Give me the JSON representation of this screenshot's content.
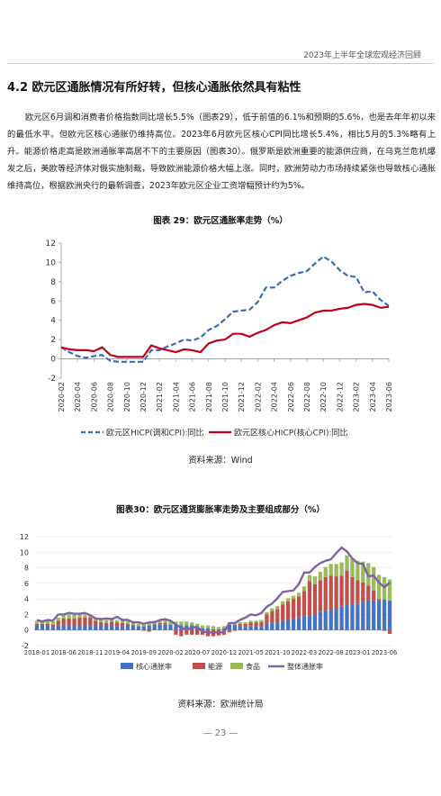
{
  "header": {
    "title": "2023年上半年全球宏观经济回顾"
  },
  "section": {
    "title": "4.2 欧元区通胀情况有所好转，但核心通胀依然具有粘性"
  },
  "paragraph": "欧元区6月调和消费者价格指数同比增长5.5%（图表29），低于前值的6.1%和预期的5.6%，也是去年年初以来的最低水平。但欧元区核心通胀仍维持高位。2023年6月欧元区核心CPI同比增长5.4%，相比5月的5.3%略有上升。能源价格走高是欧洲通胀率高居不下的主要原因（图表30）。俄罗斯是欧洲重要的能源供应商，在乌克兰危机爆发之后，美欧等经济体对俄实施制裁，导致欧洲能源价格大幅上涨。同时，欧洲劳动力市场持续紧张也导致核心通胀维持高位，根据欧洲央行的最新调查，2023年欧元区企业工资增幅预计约为5%。",
  "figure1": {
    "title": "图表 29：欧元区通胀率走势（%）",
    "source": "资料来源：Wind"
  },
  "figure2": {
    "title": "图表30：欧元区通货膨胀率走势及主要组成部分（%）",
    "source": "资料来源：欧洲统计局"
  },
  "footer": {
    "page": "— 23 —"
  },
  "chart_data": [
    {
      "type": "line",
      "title": "图表 29：欧元区通胀率走势（%）",
      "ylim": [
        -2,
        12
      ],
      "yticks": [
        -2,
        0,
        2,
        4,
        6,
        8,
        10,
        12
      ],
      "x_tick_labels": [
        "2020-02",
        "2020-04",
        "2020-06",
        "2020-08",
        "2020-10",
        "2020-12",
        "2021-02",
        "2021-04",
        "2021-06",
        "2021-08",
        "2021-10",
        "2021-12",
        "2022-02",
        "2022-04",
        "2022-06",
        "2022-08",
        "2022-10",
        "2022-12",
        "2023-02",
        "2023-04",
        "2023-06"
      ],
      "x": [
        "2020-02",
        "2020-03",
        "2020-04",
        "2020-05",
        "2020-06",
        "2020-07",
        "2020-08",
        "2020-09",
        "2020-10",
        "2020-11",
        "2020-12",
        "2021-01",
        "2021-02",
        "2021-03",
        "2021-04",
        "2021-05",
        "2021-06",
        "2021-07",
        "2021-08",
        "2021-09",
        "2021-10",
        "2021-11",
        "2021-12",
        "2022-01",
        "2022-02",
        "2022-03",
        "2022-04",
        "2022-05",
        "2022-06",
        "2022-07",
        "2022-08",
        "2022-09",
        "2022-10",
        "2022-11",
        "2022-12",
        "2023-01",
        "2023-02",
        "2023-03",
        "2023-04",
        "2023-05",
        "2023-06"
      ],
      "series": [
        {
          "name": "欧元区HICP(调和CPI):同比",
          "color": "#3a6cb4",
          "style": "dashed",
          "values": [
            1.2,
            0.7,
            0.3,
            0.1,
            0.3,
            0.4,
            -0.2,
            -0.3,
            -0.3,
            -0.3,
            -0.3,
            0.9,
            0.9,
            1.3,
            1.6,
            2.0,
            1.9,
            2.2,
            3.0,
            3.4,
            4.1,
            4.9,
            5.0,
            5.1,
            5.9,
            7.4,
            7.4,
            8.1,
            8.6,
            8.9,
            9.1,
            9.9,
            10.6,
            10.1,
            9.2,
            8.6,
            8.5,
            6.9,
            7.0,
            6.1,
            5.5
          ]
        },
        {
          "name": "欧元区核心HICP(核心CPI):同比",
          "color": "#c0001a",
          "style": "solid",
          "values": [
            1.2,
            1.0,
            0.9,
            0.9,
            0.8,
            1.2,
            0.4,
            0.2,
            0.2,
            0.2,
            0.2,
            1.4,
            1.1,
            0.9,
            0.7,
            1.0,
            0.9,
            0.7,
            1.6,
            1.9,
            2.0,
            2.6,
            2.6,
            2.3,
            2.7,
            3.0,
            3.5,
            3.8,
            3.7,
            4.0,
            4.3,
            4.8,
            5.0,
            5.0,
            5.2,
            5.3,
            5.6,
            5.7,
            5.6,
            5.3,
            5.4
          ]
        }
      ]
    },
    {
      "type": "bar",
      "title": "图表30：欧元区通货膨胀率走势及主要组成部分（%）",
      "ylim": [
        -2,
        12
      ],
      "yticks": [
        -2,
        0,
        2,
        4,
        6,
        8,
        10,
        12
      ],
      "x_tick_labels": [
        "2018-01",
        "2018-06",
        "2018-11",
        "2019-04",
        "2019-09",
        "2020-02",
        "2020-07",
        "2020-12",
        "2021-05",
        "2021-10",
        "2022-03",
        "2022-08",
        "2023-01",
        "2023-06"
      ],
      "x_start": "2018-01",
      "stacked": true,
      "series": [
        {
          "name": "核心通胀率",
          "color": "#4472c4",
          "values": [
            0.6,
            0.6,
            0.6,
            0.4,
            0.6,
            0.6,
            0.6,
            0.6,
            0.6,
            0.6,
            0.6,
            0.6,
            0.6,
            0.6,
            0.6,
            0.5,
            0.5,
            0.6,
            0.6,
            0.5,
            0.5,
            0.6,
            0.7,
            0.7,
            0.7,
            0.7,
            0.6,
            0.6,
            0.6,
            0.6,
            0.4,
            0.2,
            0.2,
            0.1,
            0.1,
            0.2,
            0.7,
            0.7,
            0.5,
            0.4,
            0.5,
            0.5,
            0.4,
            0.8,
            0.9,
            1.0,
            1.2,
            1.3,
            1.4,
            1.6,
            1.8,
            1.9,
            2.0,
            2.3,
            2.5,
            2.6,
            2.8,
            3.0,
            3.2,
            3.2,
            3.4,
            3.6,
            3.8,
            3.8,
            3.8,
            3.9,
            3.8
          ]
        },
        {
          "name": "能源",
          "color": "#c0504d",
          "values": [
            0.2,
            0.2,
            0.2,
            0.3,
            0.6,
            0.9,
            0.9,
            0.9,
            1.0,
            1.0,
            1.0,
            0.6,
            0.4,
            0.3,
            0.5,
            0.5,
            0.4,
            0.2,
            0.1,
            0.0,
            -0.1,
            -0.2,
            0.1,
            0.2,
            0.2,
            0.0,
            -0.6,
            -0.8,
            -0.6,
            -0.6,
            -0.6,
            -0.6,
            -0.8,
            -0.8,
            -0.7,
            -0.6,
            -0.3,
            -0.1,
            0.3,
            0.4,
            0.5,
            0.5,
            0.6,
            1.2,
            1.5,
            1.7,
            2.1,
            2.4,
            2.6,
            2.7,
            3.2,
            4.4,
            3.9,
            4.1,
            4.3,
            4.4,
            4.1,
            4.0,
            4.4,
            3.6,
            3.0,
            2.5,
            1.9,
            1.3,
            0.2,
            -0.1,
            -0.5
          ]
        },
        {
          "name": "食品",
          "color": "#9bbb59",
          "values": [
            0.4,
            0.4,
            0.4,
            0.4,
            0.4,
            0.4,
            0.5,
            0.5,
            0.5,
            0.4,
            0.4,
            0.4,
            0.4,
            0.4,
            0.4,
            0.3,
            0.3,
            0.3,
            0.3,
            0.3,
            0.3,
            0.4,
            0.4,
            0.4,
            0.4,
            0.5,
            0.5,
            0.5,
            0.5,
            0.4,
            0.4,
            0.4,
            0.4,
            0.4,
            0.3,
            0.3,
            0.3,
            0.2,
            0.2,
            0.2,
            0.2,
            0.2,
            0.3,
            0.3,
            0.4,
            0.4,
            0.4,
            0.4,
            0.4,
            0.5,
            0.6,
            0.8,
            1.0,
            1.1,
            1.3,
            1.5,
            1.6,
            1.7,
            2.0,
            2.4,
            2.5,
            2.7,
            2.9,
            3.0,
            3.1,
            2.9,
            2.7
          ]
        }
      ],
      "line": {
        "name": "整体通胀率",
        "color": "#8064a2",
        "values": [
          1.3,
          1.1,
          1.3,
          1.2,
          2.0,
          2.0,
          2.2,
          2.1,
          2.1,
          2.2,
          1.9,
          1.5,
          1.4,
          1.5,
          1.4,
          1.7,
          1.3,
          1.3,
          1.0,
          1.0,
          0.8,
          1.0,
          1.0,
          1.3,
          1.4,
          1.2,
          0.7,
          0.3,
          0.1,
          0.3,
          0.4,
          -0.2,
          -0.3,
          -0.3,
          -0.3,
          -0.3,
          0.9,
          0.9,
          1.3,
          1.6,
          2.0,
          1.9,
          2.2,
          3.0,
          3.4,
          4.1,
          4.9,
          5.0,
          5.1,
          5.9,
          7.4,
          7.4,
          8.1,
          8.6,
          8.9,
          9.1,
          9.9,
          10.6,
          10.1,
          9.2,
          8.6,
          8.5,
          6.9,
          7.0,
          6.1,
          5.5,
          6.1
        ]
      }
    }
  ]
}
